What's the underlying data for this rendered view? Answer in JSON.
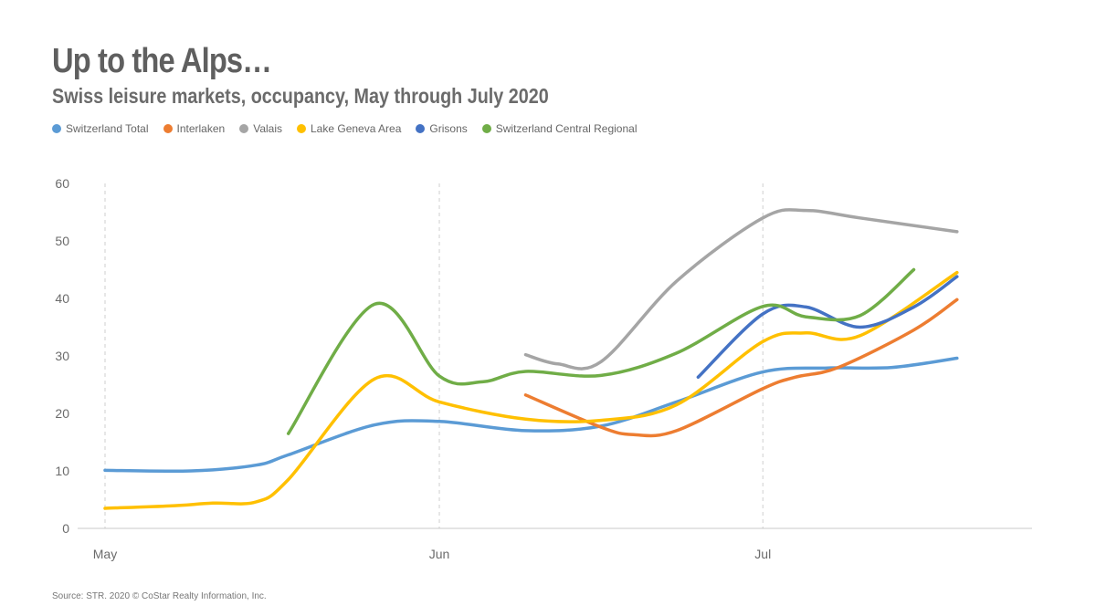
{
  "chart_data": {
    "type": "line",
    "title": "Up to the Alps…",
    "subtitle": "Swiss leisure markets, occupancy, May through July 2020",
    "source": "Source: STR. 2020 © CoStar Realty Information, Inc.",
    "x_ticks": [
      {
        "label": "May",
        "day": 0
      },
      {
        "label": "Jun",
        "day": 31
      },
      {
        "label": "Jul",
        "day": 61
      }
    ],
    "x_range": [
      0,
      83
    ],
    "ylim": [
      0,
      60
    ],
    "yticks": [
      0,
      10,
      20,
      30,
      40,
      50,
      60
    ],
    "legend": "top-left",
    "series": [
      {
        "name": "Switzerland Total",
        "color": "#5b9bd5",
        "points": [
          [
            0,
            10.1
          ],
          [
            8,
            10
          ],
          [
            14,
            11
          ],
          [
            17,
            12.8
          ],
          [
            25,
            18
          ],
          [
            31,
            18.6
          ],
          [
            39,
            17
          ],
          [
            46,
            17.8
          ],
          [
            53,
            22
          ],
          [
            61,
            27.2
          ],
          [
            67,
            27.9
          ],
          [
            73,
            28
          ],
          [
            79,
            29.6
          ]
        ]
      },
      {
        "name": "Interlaken",
        "color": "#ed7d31",
        "points": [
          [
            39,
            23.2
          ],
          [
            46,
            17.6
          ],
          [
            49,
            16.3
          ],
          [
            53,
            17
          ],
          [
            61,
            24.3
          ],
          [
            64,
            26.3
          ],
          [
            68,
            28
          ],
          [
            75,
            34.5
          ],
          [
            79,
            39.8
          ]
        ]
      },
      {
        "name": "Valais",
        "color": "#a5a5a5",
        "points": [
          [
            39,
            30.2
          ],
          [
            42,
            28.6
          ],
          [
            46,
            29
          ],
          [
            53,
            43
          ],
          [
            61,
            54
          ],
          [
            65,
            55.3
          ],
          [
            70,
            54
          ],
          [
            79,
            51.6
          ]
        ]
      },
      {
        "name": "Lake Geneva Area",
        "color": "#ffc000",
        "points": [
          [
            0,
            3.5
          ],
          [
            6,
            3.9
          ],
          [
            10,
            4.4
          ],
          [
            14,
            4.6
          ],
          [
            17,
            8.5
          ],
          [
            25,
            26
          ],
          [
            31,
            22
          ],
          [
            39,
            19
          ],
          [
            46,
            18.8
          ],
          [
            53,
            21.5
          ],
          [
            61,
            32.5
          ],
          [
            65,
            34
          ],
          [
            70,
            33.5
          ],
          [
            79,
            44.5
          ]
        ]
      },
      {
        "name": "Grisons",
        "color": "#4472c4",
        "points": [
          [
            55,
            26.3
          ],
          [
            61,
            37.3
          ],
          [
            65,
            38.5
          ],
          [
            70,
            35
          ],
          [
            75,
            38.5
          ],
          [
            79,
            43.8
          ]
        ]
      },
      {
        "name": "Switzerland Central Regional",
        "color": "#70ad47",
        "points": [
          [
            17,
            16.5
          ],
          [
            25,
            39
          ],
          [
            31,
            26.5
          ],
          [
            35,
            25.5
          ],
          [
            39,
            27.3
          ],
          [
            46,
            26.6
          ],
          [
            53,
            30.5
          ],
          [
            61,
            38.6
          ],
          [
            65,
            36.8
          ],
          [
            70,
            37
          ],
          [
            75,
            45
          ]
        ]
      }
    ]
  }
}
